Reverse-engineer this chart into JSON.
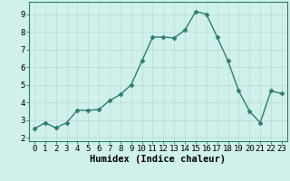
{
  "x": [
    0,
    1,
    2,
    3,
    4,
    5,
    6,
    7,
    8,
    9,
    10,
    11,
    12,
    13,
    14,
    15,
    16,
    17,
    18,
    19,
    20,
    21,
    22,
    23
  ],
  "y": [
    2.5,
    2.85,
    2.55,
    2.85,
    3.55,
    3.55,
    3.6,
    4.1,
    4.45,
    5.0,
    6.35,
    7.7,
    7.7,
    7.65,
    8.1,
    9.15,
    9.0,
    7.7,
    6.35,
    4.65,
    3.5,
    2.85,
    4.65,
    4.5
  ],
  "line_color": "#2e7d6e",
  "marker": "D",
  "markersize": 2.5,
  "linewidth": 1.0,
  "bg_color": "#cff0eb",
  "grid_color": "#c0ddd8",
  "xlabel": "Humidex (Indice chaleur)",
  "xlabel_fontsize": 7.5,
  "xtick_labels": [
    "0",
    "1",
    "2",
    "3",
    "4",
    "5",
    "6",
    "7",
    "8",
    "9",
    "10",
    "11",
    "12",
    "13",
    "14",
    "15",
    "16",
    "17",
    "18",
    "19",
    "20",
    "21",
    "22",
    "23"
  ],
  "ytick_labels": [
    "2",
    "3",
    "4",
    "5",
    "6",
    "7",
    "8",
    "9"
  ],
  "ylim": [
    1.8,
    9.7
  ],
  "xlim": [
    -0.5,
    23.5
  ],
  "tick_fontsize": 6.5,
  "frame_color": "#2e7d6e"
}
